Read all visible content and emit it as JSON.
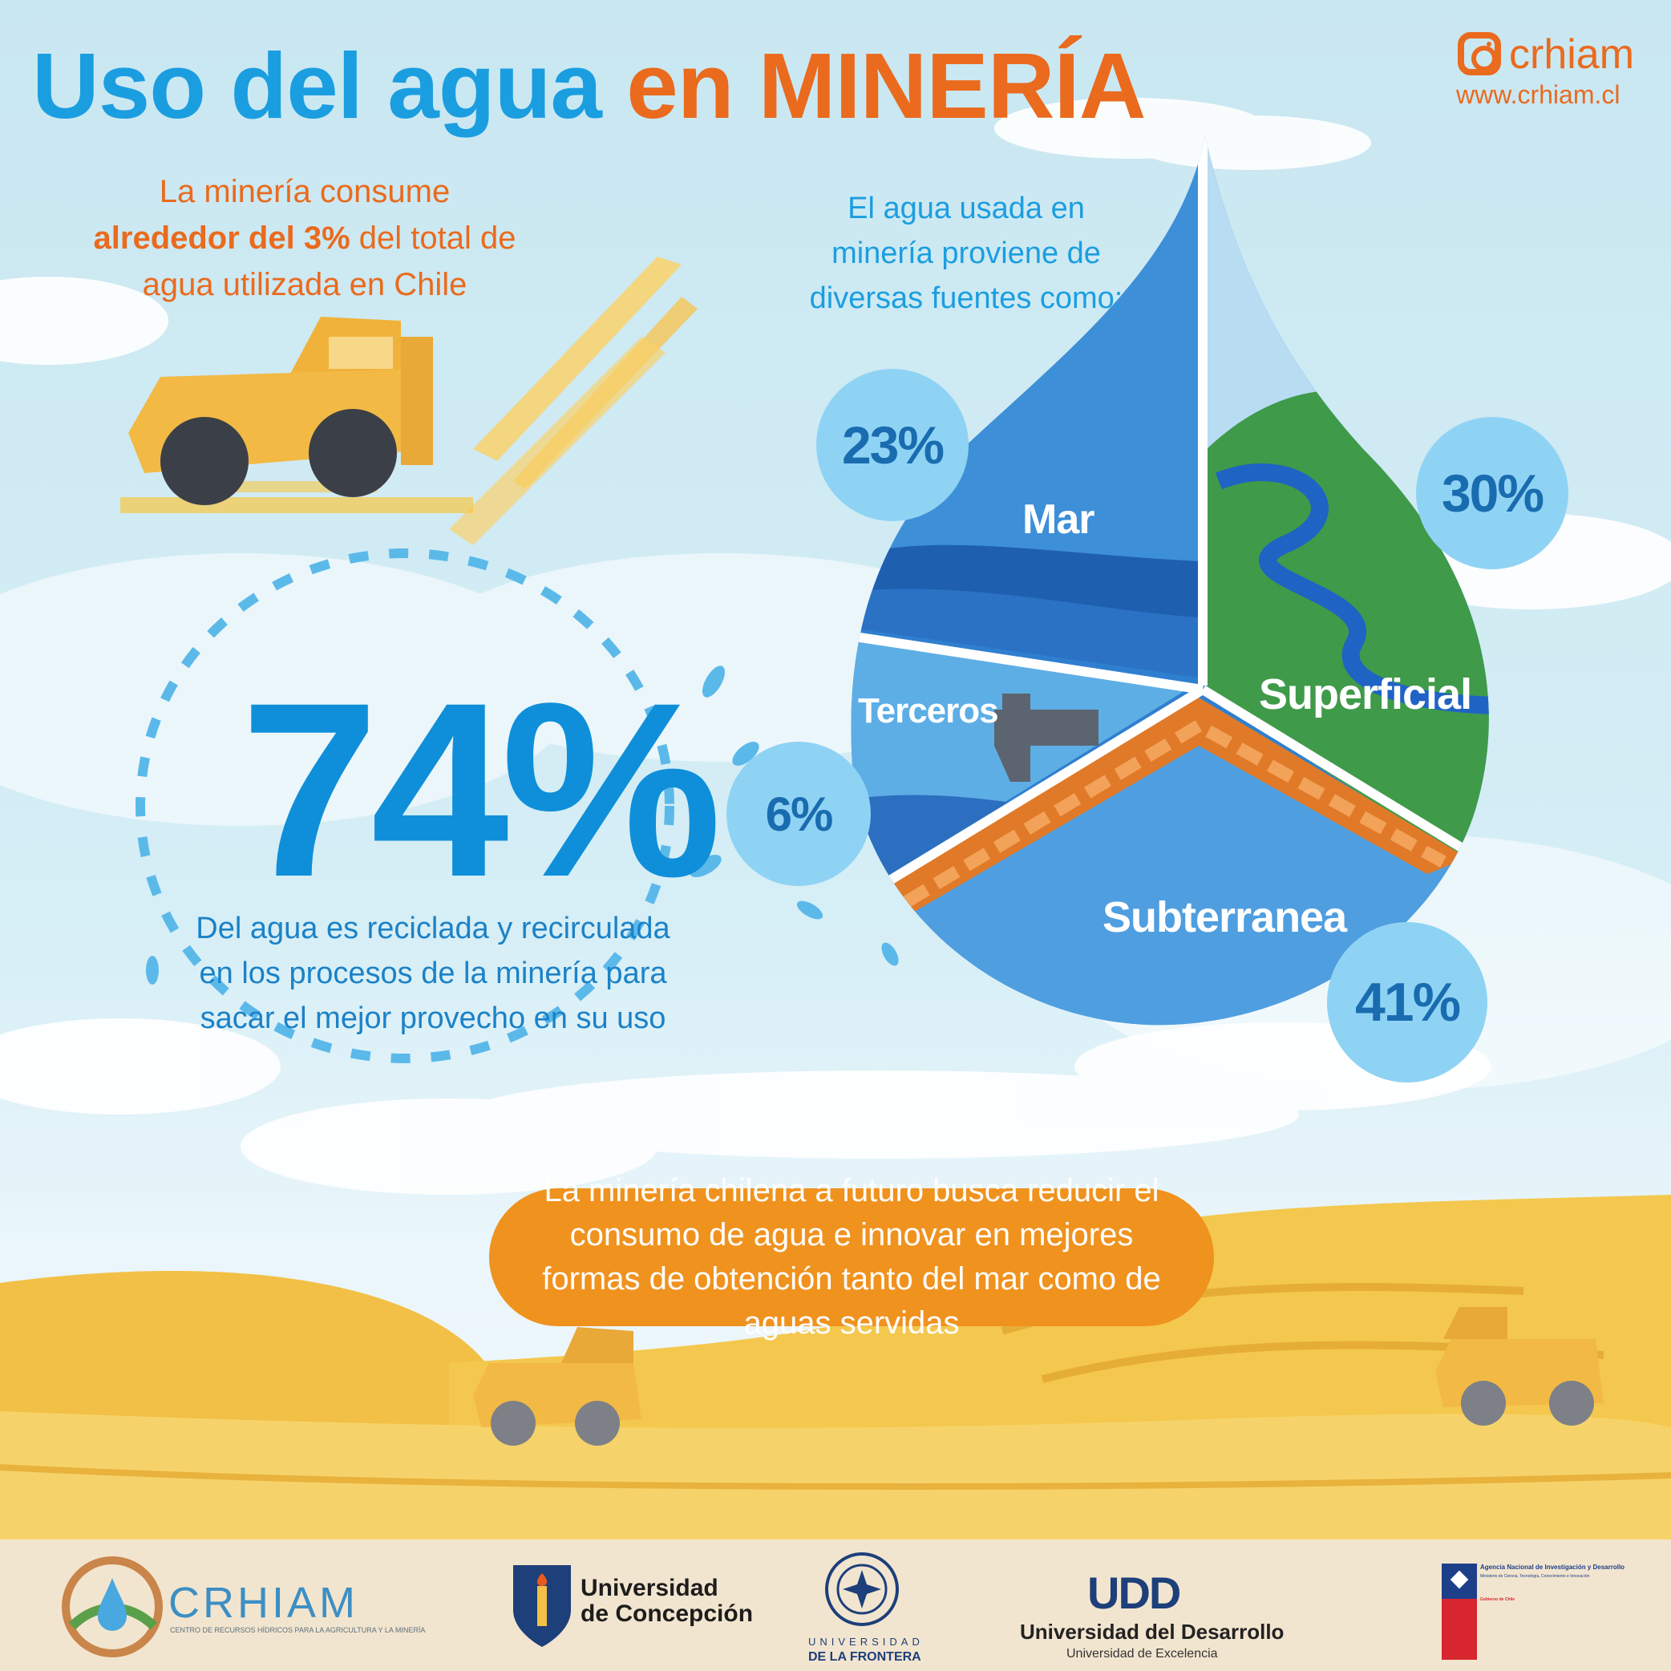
{
  "header": {
    "title_part1": "Uso del agua",
    "title_part2": "en MINERÍA",
    "instagram_handle": "crhiam",
    "website": "www.crhiam.cl"
  },
  "consumption": {
    "line1": "La minería consume",
    "line2_bold": "alrededor del 3%",
    "line2_rest": " del total de",
    "line3": "agua utilizada en Chile"
  },
  "sources": {
    "intro": "El agua usada en minería proviene de diversas fuentes como:",
    "items": [
      {
        "label": "Mar",
        "percent": "23%"
      },
      {
        "label": "Superficial",
        "percent": "30%"
      },
      {
        "label": "Terceros",
        "percent": "6%"
      },
      {
        "label": "Subterranea",
        "percent": "41%"
      }
    ]
  },
  "recycling": {
    "value": "74%",
    "description": "Del agua es reciclada y recirculada en los procesos de la minería para sacar el mejor provecho en su uso"
  },
  "future": {
    "text": "La minería chilena a futuro busca reducir el consumo de agua e innovar en mejores formas de obtención tanto del mar como de aguas servidas"
  },
  "footer": {
    "crhiam_name": "CRHIAM",
    "crhiam_sub": "CENTRO DE RECURSOS HÍDRICOS PARA LA AGRICULTURA Y LA MINERÍA",
    "udec_line1": "Universidad",
    "udec_line2": "de Concepción",
    "ufro_line1": "UNIVERSIDAD",
    "ufro_line2": "DE LA FRONTERA",
    "udd_mark": "UDD",
    "udd_name": "Universidad del Desarrollo",
    "udd_tagline": "Universidad de Excelencia",
    "anid_name": "Agencia Nacional de Investigación y Desarrollo",
    "anid_ministry": "Ministerio de Ciencia, Tecnología, Conocimiento e Innovación",
    "anid_gov": "Gobierno de Chile"
  }
}
